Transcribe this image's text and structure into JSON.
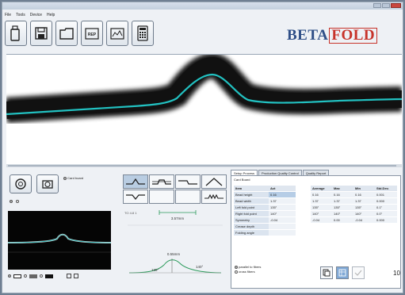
{
  "menu": [
    "File",
    "Tools",
    "Device",
    "Help"
  ],
  "toolbar": [
    {
      "icon": "bottle-icon"
    },
    {
      "icon": "save-icon"
    },
    {
      "icon": "folder-icon"
    },
    {
      "icon": "report-icon",
      "label": "REP"
    },
    {
      "icon": "graph-icon"
    },
    {
      "icon": "calculator-icon"
    }
  ],
  "logo": {
    "part1": "BETA",
    "part2": "FOLD"
  },
  "left_panel": {
    "mode_label": "Card board"
  },
  "middle_panel": {
    "ruler_left": "TO 4.8 1",
    "measure_top": "3.57mm",
    "measure_mid": "0.55mm",
    "angle_left": "135°",
    "angle_right": "140°"
  },
  "tabs": [
    {
      "label": "Setup Process",
      "active": true
    },
    {
      "label": "Production Quality Control",
      "active": false
    },
    {
      "label": "Quality Report",
      "active": false
    }
  ],
  "board_label": "Card Board",
  "table": {
    "headers": [
      "Item",
      "Act",
      "Average",
      "Max",
      "Min",
      "Std.Dev."
    ],
    "rows": [
      {
        "name": "Bead height",
        "act": "0.16",
        "avg": "0.16",
        "max": "0.16",
        "min": "0.16",
        "std": "0.001"
      },
      {
        "name": "Bead width",
        "act": "1.37",
        "avg": "1.37",
        "max": "1.37",
        "min": "1.37",
        "std": "0.000"
      },
      {
        "name": "Left fold point",
        "act": "135°",
        "avg": "135°",
        "max": "135°",
        "min": "135°",
        "std": "0.1°"
      },
      {
        "name": "Right fold point",
        "act": "140°",
        "avg": "140°",
        "max": "140°",
        "min": "140°",
        "std": "0.0°"
      },
      {
        "name": "Symmetry",
        "act": "-0.04",
        "avg": "-0.04",
        "max": "0.00",
        "min": "-0.04",
        "std": "0.000"
      },
      {
        "name": "Crease depth",
        "act": "",
        "avg": "",
        "max": "",
        "min": "",
        "std": ""
      },
      {
        "name": "Folding angle",
        "act": "",
        "avg": "",
        "max": "",
        "min": "",
        "std": ""
      }
    ]
  },
  "orientation": {
    "opt1": "parallel to fibers",
    "opt2": "cross fibers"
  },
  "bottom_right_value": "10"
}
